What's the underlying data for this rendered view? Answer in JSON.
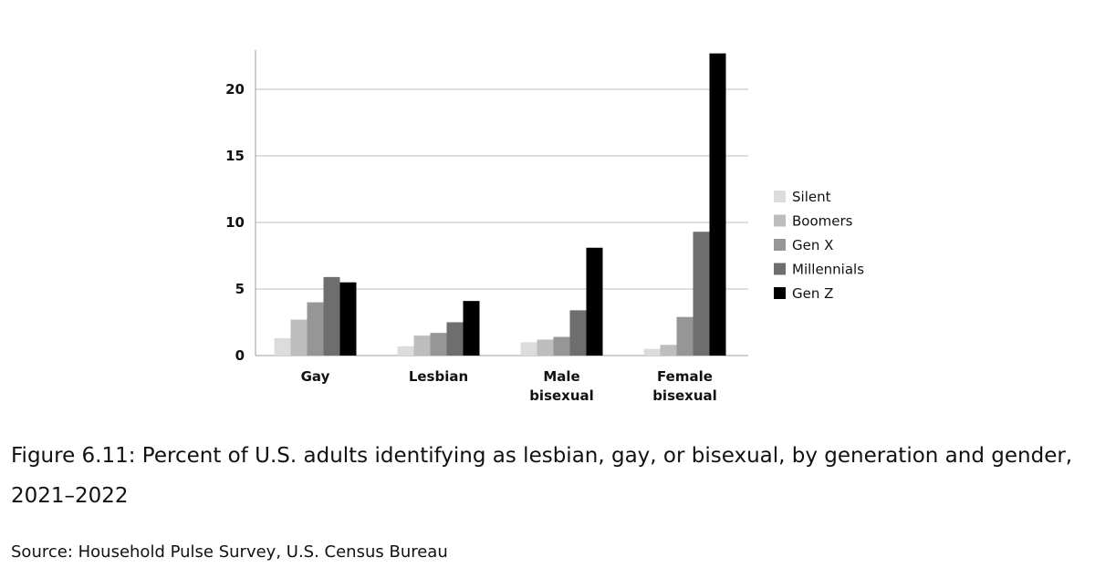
{
  "chart_data": {
    "type": "bar",
    "title": "",
    "xlabel": "",
    "ylabel": "",
    "ylim": [
      0,
      23
    ],
    "yticks": [
      0,
      5,
      10,
      15,
      20
    ],
    "grid": true,
    "legend_position": "right",
    "categories": [
      [
        "Gay"
      ],
      [
        "Lesbian"
      ],
      [
        "Male",
        "bisexual"
      ],
      [
        "Female",
        "bisexual"
      ]
    ],
    "series": [
      {
        "name": "Silent",
        "color": "#dcdcdc",
        "values": [
          1.3,
          0.7,
          1.0,
          0.5
        ]
      },
      {
        "name": "Boomers",
        "color": "#bdbdbd",
        "values": [
          2.7,
          1.5,
          1.2,
          0.8
        ]
      },
      {
        "name": "Gen X",
        "color": "#969696",
        "values": [
          4.0,
          1.7,
          1.4,
          2.9
        ]
      },
      {
        "name": "Millennials",
        "color": "#6e6e6e",
        "values": [
          5.9,
          2.5,
          3.4,
          9.3
        ]
      },
      {
        "name": "Gen Z",
        "color": "#000000",
        "values": [
          5.5,
          4.1,
          8.1,
          22.7
        ]
      }
    ]
  },
  "caption": "Figure 6.11: Percent of U.S. adults identifying as lesbian, gay, or bisexual, by generation and gender, 2021–2022",
  "source": "Source: Household Pulse Survey, U.S. Census Bureau"
}
